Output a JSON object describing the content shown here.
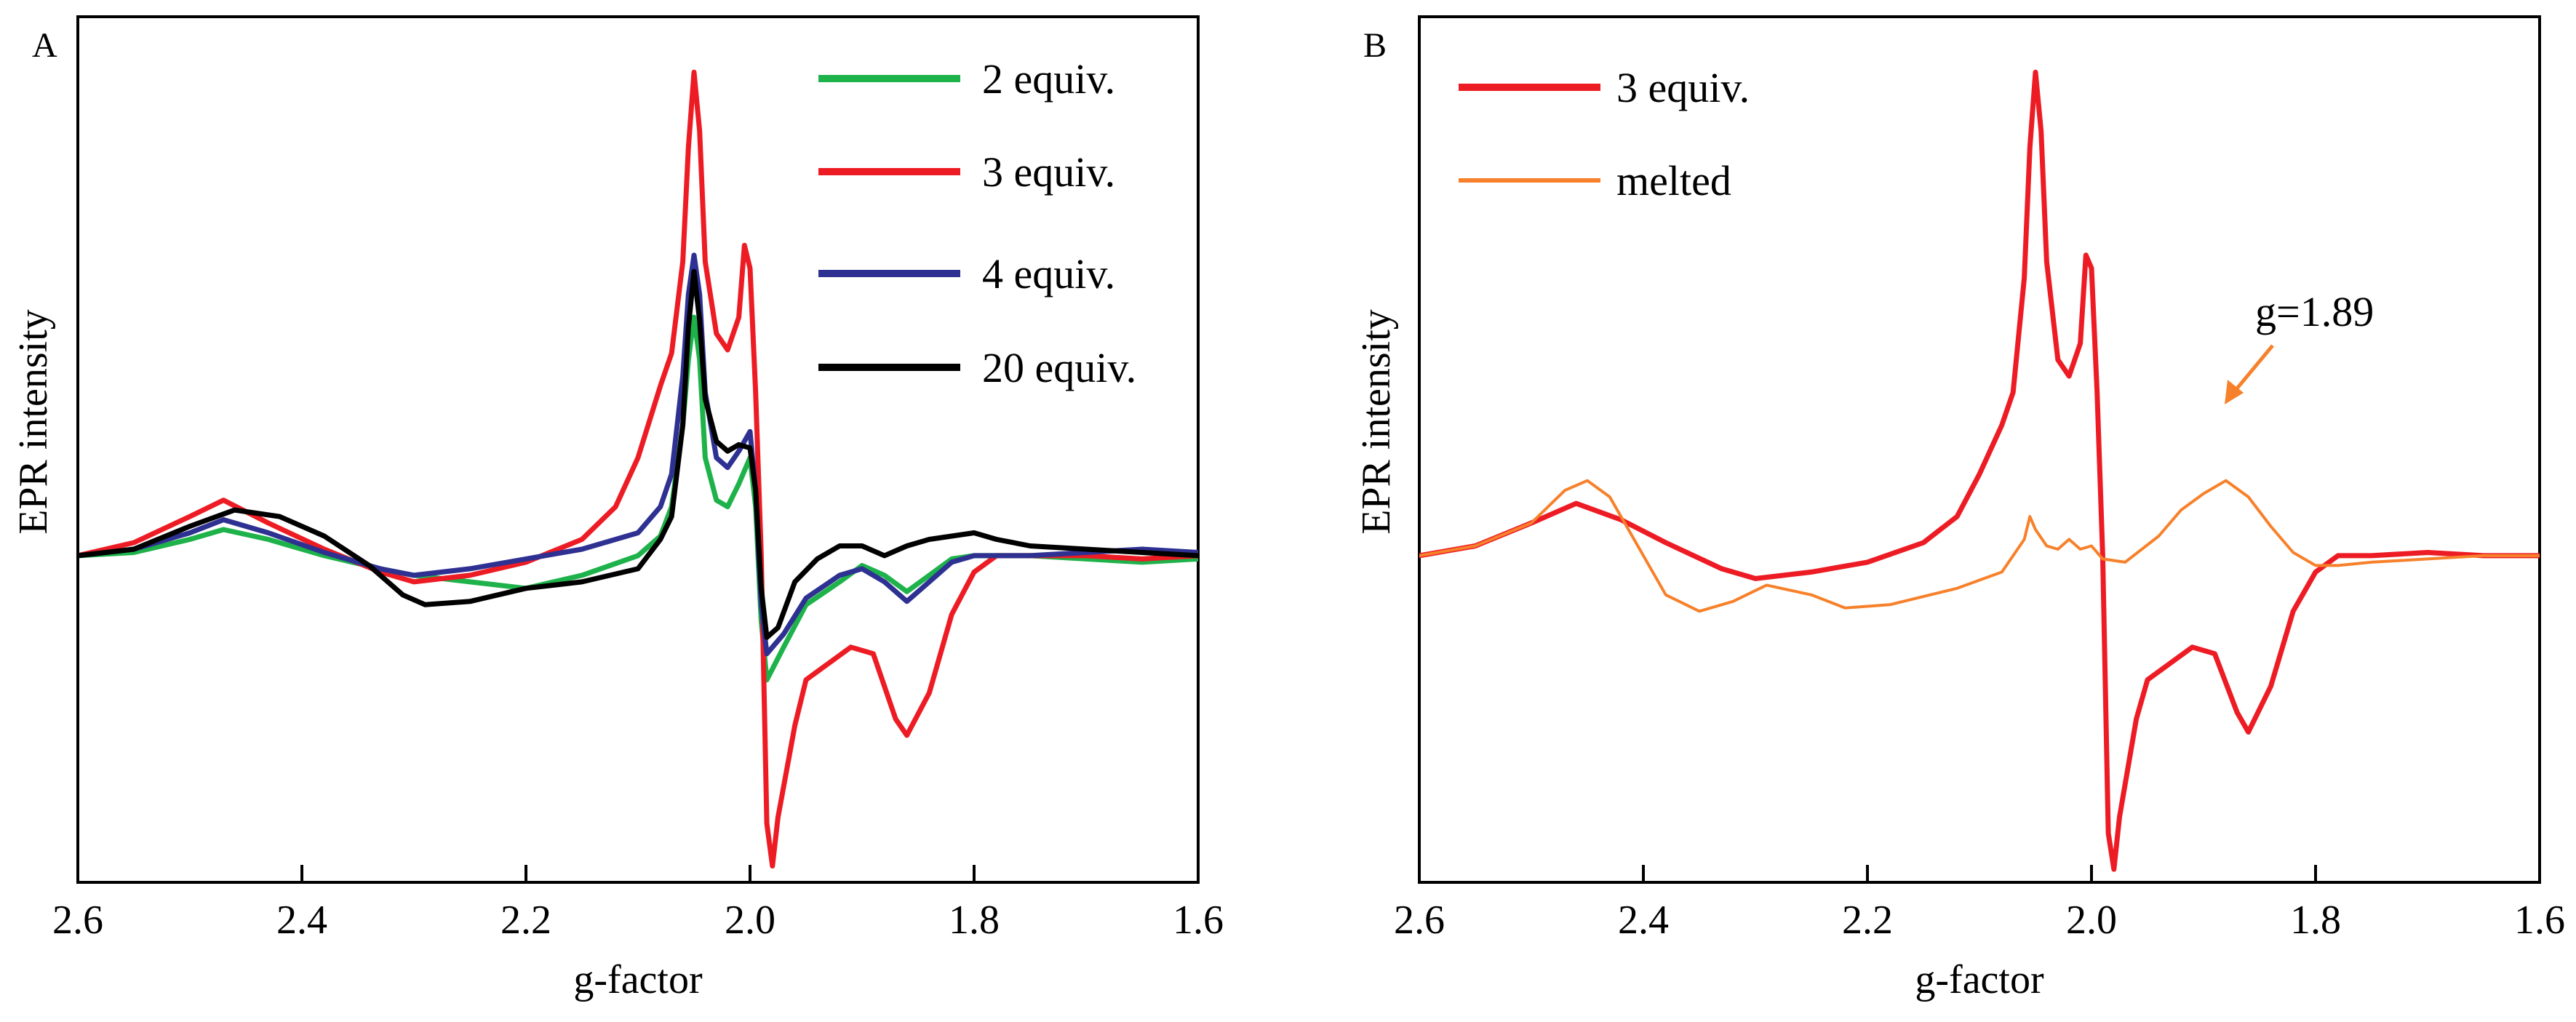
{
  "figure_panels": [
    "A",
    "B"
  ],
  "chart_data": [
    {
      "type": "line",
      "panel": "A",
      "title": "",
      "xlabel": "g-factor",
      "ylabel": "EPR intensity",
      "xlim": [
        2.6,
        1.6
      ],
      "ylim": [
        -1.0,
        1.65
      ],
      "x_ticks": [
        2.6,
        2.4,
        2.2,
        2.0,
        1.8,
        1.6
      ],
      "x_tick_labels": [
        "2.6",
        "2.4",
        "2.2",
        "2.0",
        "1.8",
        "1.6"
      ],
      "y_ticks_shown": false,
      "grid": false,
      "legend_position": "top-right",
      "series": [
        {
          "name": "2 equiv.",
          "color": "#1eb24a",
          "points": [
            [
              2.6,
              0.0
            ],
            [
              2.55,
              0.01
            ],
            [
              2.5,
              0.05
            ],
            [
              2.47,
              0.08
            ],
            [
              2.43,
              0.05
            ],
            [
              2.38,
              0.0
            ],
            [
              2.33,
              -0.04
            ],
            [
              2.3,
              -0.06
            ],
            [
              2.25,
              -0.08
            ],
            [
              2.2,
              -0.1
            ],
            [
              2.15,
              -0.06
            ],
            [
              2.1,
              0.0
            ],
            [
              2.08,
              0.06
            ],
            [
              2.07,
              0.15
            ],
            [
              2.06,
              0.4
            ],
            [
              2.055,
              0.6
            ],
            [
              2.05,
              0.73
            ],
            [
              2.045,
              0.6
            ],
            [
              2.04,
              0.3
            ],
            [
              2.03,
              0.17
            ],
            [
              2.02,
              0.15
            ],
            [
              2.01,
              0.22
            ],
            [
              2.0,
              0.3
            ],
            [
              1.995,
              0.15
            ],
            [
              1.99,
              -0.2
            ],
            [
              1.985,
              -0.38
            ],
            [
              1.97,
              -0.28
            ],
            [
              1.95,
              -0.15
            ],
            [
              1.92,
              -0.08
            ],
            [
              1.9,
              -0.03
            ],
            [
              1.88,
              -0.06
            ],
            [
              1.86,
              -0.11
            ],
            [
              1.84,
              -0.06
            ],
            [
              1.82,
              -0.01
            ],
            [
              1.8,
              0.0
            ],
            [
              1.75,
              0.0
            ],
            [
              1.7,
              -0.01
            ],
            [
              1.65,
              -0.02
            ],
            [
              1.6,
              -0.01
            ]
          ]
        },
        {
          "name": "3 equiv.",
          "color": "#ed1c24",
          "points": [
            [
              2.6,
              0.0
            ],
            [
              2.55,
              0.04
            ],
            [
              2.5,
              0.12
            ],
            [
              2.47,
              0.17
            ],
            [
              2.43,
              0.1
            ],
            [
              2.38,
              0.02
            ],
            [
              2.33,
              -0.05
            ],
            [
              2.3,
              -0.08
            ],
            [
              2.25,
              -0.06
            ],
            [
              2.2,
              -0.02
            ],
            [
              2.15,
              0.05
            ],
            [
              2.12,
              0.15
            ],
            [
              2.1,
              0.3
            ],
            [
              2.08,
              0.52
            ],
            [
              2.07,
              0.62
            ],
            [
              2.06,
              0.9
            ],
            [
              2.055,
              1.25
            ],
            [
              2.05,
              1.48
            ],
            [
              2.045,
              1.3
            ],
            [
              2.04,
              0.9
            ],
            [
              2.03,
              0.68
            ],
            [
              2.02,
              0.63
            ],
            [
              2.01,
              0.73
            ],
            [
              2.005,
              0.95
            ],
            [
              2.0,
              0.88
            ],
            [
              1.995,
              0.5
            ],
            [
              1.99,
              0.0
            ],
            [
              1.985,
              -0.82
            ],
            [
              1.98,
              -0.95
            ],
            [
              1.975,
              -0.8
            ],
            [
              1.96,
              -0.52
            ],
            [
              1.95,
              -0.38
            ],
            [
              1.93,
              -0.33
            ],
            [
              1.91,
              -0.28
            ],
            [
              1.89,
              -0.3
            ],
            [
              1.87,
              -0.5
            ],
            [
              1.86,
              -0.55
            ],
            [
              1.84,
              -0.42
            ],
            [
              1.82,
              -0.18
            ],
            [
              1.8,
              -0.05
            ],
            [
              1.78,
              0.0
            ],
            [
              1.75,
              0.0
            ],
            [
              1.7,
              0.0
            ],
            [
              1.65,
              -0.01
            ],
            [
              1.6,
              0.0
            ]
          ]
        },
        {
          "name": "4 equiv.",
          "color": "#2e3192",
          "points": [
            [
              2.6,
              0.0
            ],
            [
              2.55,
              0.02
            ],
            [
              2.5,
              0.07
            ],
            [
              2.47,
              0.11
            ],
            [
              2.43,
              0.07
            ],
            [
              2.38,
              0.01
            ],
            [
              2.33,
              -0.04
            ],
            [
              2.3,
              -0.06
            ],
            [
              2.25,
              -0.04
            ],
            [
              2.2,
              -0.01
            ],
            [
              2.15,
              0.02
            ],
            [
              2.1,
              0.07
            ],
            [
              2.08,
              0.15
            ],
            [
              2.07,
              0.25
            ],
            [
              2.06,
              0.55
            ],
            [
              2.055,
              0.8
            ],
            [
              2.05,
              0.92
            ],
            [
              2.045,
              0.8
            ],
            [
              2.04,
              0.5
            ],
            [
              2.03,
              0.3
            ],
            [
              2.02,
              0.27
            ],
            [
              2.01,
              0.32
            ],
            [
              2.0,
              0.38
            ],
            [
              1.995,
              0.2
            ],
            [
              1.99,
              -0.15
            ],
            [
              1.985,
              -0.3
            ],
            [
              1.97,
              -0.24
            ],
            [
              1.95,
              -0.13
            ],
            [
              1.92,
              -0.06
            ],
            [
              1.9,
              -0.04
            ],
            [
              1.88,
              -0.08
            ],
            [
              1.86,
              -0.14
            ],
            [
              1.84,
              -0.08
            ],
            [
              1.82,
              -0.02
            ],
            [
              1.8,
              0.0
            ],
            [
              1.75,
              0.0
            ],
            [
              1.7,
              0.01
            ],
            [
              1.65,
              0.02
            ],
            [
              1.6,
              0.01
            ]
          ]
        },
        {
          "name": "20 equiv.",
          "color": "#000000",
          "points": [
            [
              2.6,
              0.0
            ],
            [
              2.55,
              0.02
            ],
            [
              2.5,
              0.09
            ],
            [
              2.46,
              0.14
            ],
            [
              2.42,
              0.12
            ],
            [
              2.38,
              0.06
            ],
            [
              2.34,
              -0.03
            ],
            [
              2.31,
              -0.12
            ],
            [
              2.29,
              -0.15
            ],
            [
              2.25,
              -0.14
            ],
            [
              2.2,
              -0.1
            ],
            [
              2.15,
              -0.08
            ],
            [
              2.1,
              -0.04
            ],
            [
              2.08,
              0.05
            ],
            [
              2.07,
              0.12
            ],
            [
              2.06,
              0.4
            ],
            [
              2.055,
              0.7
            ],
            [
              2.05,
              0.87
            ],
            [
              2.045,
              0.72
            ],
            [
              2.04,
              0.48
            ],
            [
              2.03,
              0.35
            ],
            [
              2.02,
              0.32
            ],
            [
              2.01,
              0.34
            ],
            [
              2.0,
              0.33
            ],
            [
              1.995,
              0.2
            ],
            [
              1.99,
              -0.1
            ],
            [
              1.985,
              -0.25
            ],
            [
              1.975,
              -0.22
            ],
            [
              1.96,
              -0.08
            ],
            [
              1.94,
              -0.01
            ],
            [
              1.92,
              0.03
            ],
            [
              1.9,
              0.03
            ],
            [
              1.88,
              0.0
            ],
            [
              1.86,
              0.03
            ],
            [
              1.84,
              0.05
            ],
            [
              1.82,
              0.06
            ],
            [
              1.8,
              0.07
            ],
            [
              1.78,
              0.05
            ],
            [
              1.75,
              0.03
            ],
            [
              1.7,
              0.02
            ],
            [
              1.65,
              0.01
            ],
            [
              1.6,
              0.0
            ]
          ]
        }
      ],
      "annotations": []
    },
    {
      "type": "line",
      "panel": "B",
      "title": "",
      "xlabel": "g-factor",
      "ylabel": "EPR intensity",
      "xlim": [
        2.6,
        1.6
      ],
      "ylim": [
        -1.0,
        1.65
      ],
      "x_ticks": [
        2.6,
        2.4,
        2.2,
        2.0,
        1.8,
        1.6
      ],
      "x_tick_labels": [
        "2.6",
        "2.4",
        "2.2",
        "2.0",
        "1.8",
        "1.6"
      ],
      "y_ticks_shown": false,
      "grid": false,
      "legend_position": "top-left",
      "series": [
        {
          "name": "3 equiv.",
          "color": "#ed1c24",
          "points": [
            [
              2.6,
              0.0
            ],
            [
              2.55,
              0.03
            ],
            [
              2.5,
              0.1
            ],
            [
              2.46,
              0.16
            ],
            [
              2.42,
              0.11
            ],
            [
              2.38,
              0.04
            ],
            [
              2.33,
              -0.04
            ],
            [
              2.3,
              -0.07
            ],
            [
              2.25,
              -0.05
            ],
            [
              2.2,
              -0.02
            ],
            [
              2.15,
              0.04
            ],
            [
              2.12,
              0.12
            ],
            [
              2.1,
              0.25
            ],
            [
              2.08,
              0.4
            ],
            [
              2.07,
              0.5
            ],
            [
              2.06,
              0.85
            ],
            [
              2.055,
              1.25
            ],
            [
              2.05,
              1.48
            ],
            [
              2.045,
              1.3
            ],
            [
              2.04,
              0.9
            ],
            [
              2.03,
              0.6
            ],
            [
              2.02,
              0.55
            ],
            [
              2.01,
              0.65
            ],
            [
              2.005,
              0.92
            ],
            [
              2.0,
              0.88
            ],
            [
              1.995,
              0.5
            ],
            [
              1.99,
              0.0
            ],
            [
              1.985,
              -0.85
            ],
            [
              1.98,
              -0.96
            ],
            [
              1.975,
              -0.8
            ],
            [
              1.96,
              -0.5
            ],
            [
              1.95,
              -0.38
            ],
            [
              1.93,
              -0.33
            ],
            [
              1.91,
              -0.28
            ],
            [
              1.89,
              -0.3
            ],
            [
              1.87,
              -0.48
            ],
            [
              1.86,
              -0.54
            ],
            [
              1.84,
              -0.4
            ],
            [
              1.82,
              -0.17
            ],
            [
              1.8,
              -0.05
            ],
            [
              1.78,
              0.0
            ],
            [
              1.75,
              0.0
            ],
            [
              1.7,
              0.01
            ],
            [
              1.65,
              0.0
            ],
            [
              1.6,
              0.0
            ]
          ]
        },
        {
          "name": "melted",
          "color": "#f7812b",
          "points": [
            [
              2.6,
              0.0
            ],
            [
              2.55,
              0.03
            ],
            [
              2.5,
              0.1
            ],
            [
              2.47,
              0.2
            ],
            [
              2.45,
              0.23
            ],
            [
              2.43,
              0.18
            ],
            [
              2.4,
              0.0
            ],
            [
              2.38,
              -0.12
            ],
            [
              2.35,
              -0.17
            ],
            [
              2.32,
              -0.14
            ],
            [
              2.29,
              -0.09
            ],
            [
              2.25,
              -0.12
            ],
            [
              2.22,
              -0.16
            ],
            [
              2.18,
              -0.15
            ],
            [
              2.12,
              -0.1
            ],
            [
              2.08,
              -0.05
            ],
            [
              2.06,
              0.05
            ],
            [
              2.055,
              0.12
            ],
            [
              2.05,
              0.08
            ],
            [
              2.04,
              0.03
            ],
            [
              2.03,
              0.02
            ],
            [
              2.02,
              0.05
            ],
            [
              2.01,
              0.02
            ],
            [
              2.0,
              0.03
            ],
            [
              1.99,
              -0.01
            ],
            [
              1.97,
              -0.02
            ],
            [
              1.94,
              0.06
            ],
            [
              1.92,
              0.14
            ],
            [
              1.9,
              0.19
            ],
            [
              1.88,
              0.23
            ],
            [
              1.86,
              0.18
            ],
            [
              1.84,
              0.09
            ],
            [
              1.82,
              0.01
            ],
            [
              1.8,
              -0.03
            ],
            [
              1.78,
              -0.03
            ],
            [
              1.75,
              -0.02
            ],
            [
              1.7,
              -0.01
            ],
            [
              1.65,
              0.0
            ],
            [
              1.6,
              0.0
            ]
          ]
        }
      ],
      "annotations": [
        {
          "text": "g=1.89",
          "color": "#f7812b",
          "points_to": [
            1.88,
            0.23
          ]
        }
      ]
    }
  ]
}
